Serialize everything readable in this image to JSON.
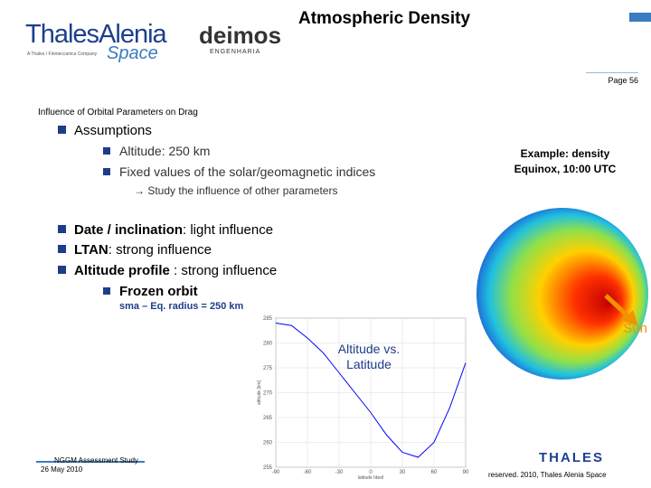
{
  "header": {
    "logo": "ThalesAlenia",
    "logo_sub": "Space",
    "logo_tagline": "A Thales / Finmeccanica Company",
    "partner": "deimos",
    "partner_sub": "ENGENHARIA",
    "title": "Atmospheric Density",
    "page": "Page 56"
  },
  "section": "Influence of Orbital Parameters on Drag",
  "assumptions": {
    "heading": "Assumptions",
    "items": [
      "Altitude: 250 km",
      "Fixed values of the solar/geomagnetic indices"
    ],
    "note": "→ Study the influence of other parameters"
  },
  "bullets": [
    {
      "lead": "Date / inclination",
      "text": ": light influence"
    },
    {
      "lead": "LTAN",
      "text": ": strong influence"
    },
    {
      "lead": "Altitude profile",
      "text": " : strong influence"
    }
  ],
  "sub_bullet": "Frozen orbit",
  "sub_note": "sma – Eq. radius = 250 km",
  "globe": {
    "caption": [
      "Example: density",
      "Equinox, 10:00 UTC"
    ],
    "sun": "Sun"
  },
  "chart_data": {
    "type": "line",
    "annotation": [
      "Altitude vs.",
      "Latitude"
    ],
    "x_label": "latitude [deg]",
    "y_label": "altitude [km]",
    "x": [
      -90,
      -75,
      -60,
      -45,
      -30,
      -15,
      0,
      15,
      30,
      45,
      60,
      75,
      90
    ],
    "values": [
      284,
      283.5,
      281,
      278,
      274,
      270,
      266,
      261.5,
      258,
      257,
      260,
      267,
      276
    ],
    "color": "#0000ff",
    "xlim": [
      -90,
      90
    ],
    "xticks": [
      -90,
      -60,
      -30,
      0,
      30,
      60,
      90
    ],
    "ylim": [
      255,
      285
    ],
    "yticks": [
      255,
      260,
      265,
      270,
      275,
      280,
      285
    ],
    "grid": true
  },
  "footer": {
    "study": "NGGM Assessment Study",
    "date": "26 May 2010",
    "copyright": "reserved. 2010, Thales Alenia Space",
    "brand": "THALES"
  }
}
